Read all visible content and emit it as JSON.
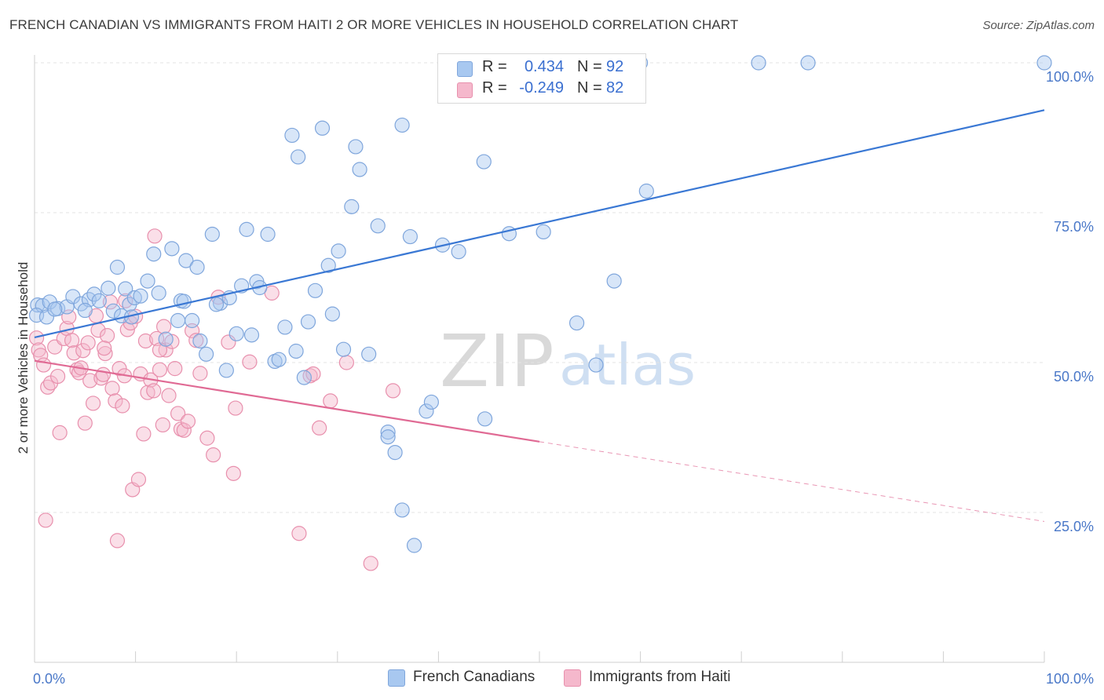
{
  "title": "FRENCH CANADIAN VS IMMIGRANTS FROM HAITI 2 OR MORE VEHICLES IN HOUSEHOLD CORRELATION CHART",
  "source": "Source: ZipAtlas.com",
  "watermark": {
    "zip": "ZIP",
    "atlas": "atlas"
  },
  "legend": {
    "rows": [
      {
        "r_label": "R =",
        "r_value": "0.434",
        "n_label": "N =",
        "n_value": "92",
        "color": "#a8c8f0"
      },
      {
        "r_label": "R =",
        "r_value": "-0.249",
        "n_label": "N =",
        "n_value": "82",
        "color": "#f5b8cc"
      }
    ]
  },
  "bottom_legend": [
    "French Canadians",
    "Immigrants from Haiti"
  ],
  "chart_data": {
    "type": "scatter",
    "ylabel": "2 or more Vehicles in Household",
    "xlim": [
      0,
      100
    ],
    "ylim": [
      0,
      104
    ],
    "x_tick_labels": [
      {
        "value": 0,
        "label": "0.0%"
      },
      {
        "value": 100,
        "label": "100.0%"
      }
    ],
    "y_tick_labels": [
      {
        "value": 25,
        "label": "25.0%"
      },
      {
        "value": 50,
        "label": "50.0%"
      },
      {
        "value": 75,
        "label": "75.0%"
      },
      {
        "value": 100,
        "label": "100.0%"
      }
    ],
    "grid": true,
    "legend_position": "top-center",
    "colors": {
      "blue_fill": "#a8c8f0",
      "blue_stroke": "#7fa6dc",
      "blue_line": "#3a78d4",
      "pink_fill": "#f5b8cc",
      "pink_stroke": "#e890ad",
      "pink_line": "#e06a94"
    },
    "series": [
      {
        "name": "French Canadians",
        "trend": {
          "x0": 0,
          "y0": 54.2,
          "x1": 100,
          "y1": 92.1
        },
        "points": [
          [
            0.3,
            59.6
          ],
          [
            0.8,
            59.5
          ],
          [
            1.5,
            60.1
          ],
          [
            2.3,
            59.0
          ],
          [
            3.2,
            59.3
          ],
          [
            3.8,
            61.0
          ],
          [
            4.6,
            59.8
          ],
          [
            5.4,
            60.5
          ],
          [
            5.9,
            61.4
          ],
          [
            6.4,
            60.3
          ],
          [
            7.3,
            62.4
          ],
          [
            7.8,
            58.6
          ],
          [
            8.2,
            65.9
          ],
          [
            8.6,
            57.8
          ],
          [
            9.0,
            62.3
          ],
          [
            9.4,
            59.7
          ],
          [
            9.9,
            60.8
          ],
          [
            10.5,
            61.1
          ],
          [
            11.2,
            63.6
          ],
          [
            11.8,
            68.1
          ],
          [
            12.3,
            61.6
          ],
          [
            13.0,
            53.9
          ],
          [
            13.6,
            69.0
          ],
          [
            14.2,
            57.0
          ],
          [
            14.5,
            60.3
          ],
          [
            15.0,
            67.0
          ],
          [
            15.6,
            57.0
          ],
          [
            16.1,
            65.9
          ],
          [
            16.4,
            53.6
          ],
          [
            17.0,
            51.4
          ],
          [
            17.6,
            71.4
          ],
          [
            18.4,
            59.9
          ],
          [
            19.0,
            48.7
          ],
          [
            19.3,
            60.8
          ],
          [
            20.0,
            54.8
          ],
          [
            20.5,
            62.8
          ],
          [
            21.0,
            72.2
          ],
          [
            21.5,
            54.6
          ],
          [
            22.0,
            63.5
          ],
          [
            22.3,
            62.5
          ],
          [
            23.1,
            71.4
          ],
          [
            23.8,
            50.2
          ],
          [
            24.2,
            50.5
          ],
          [
            24.8,
            55.9
          ],
          [
            25.5,
            87.9
          ],
          [
            25.9,
            51.9
          ],
          [
            26.1,
            84.3
          ],
          [
            26.7,
            47.5
          ],
          [
            27.1,
            56.8
          ],
          [
            27.8,
            62.0
          ],
          [
            28.5,
            89.1
          ],
          [
            29.1,
            66.2
          ],
          [
            29.5,
            58.1
          ],
          [
            30.1,
            68.6
          ],
          [
            30.6,
            52.2
          ],
          [
            31.4,
            76.0
          ],
          [
            31.8,
            86.0
          ],
          [
            32.2,
            82.2
          ],
          [
            33.1,
            51.4
          ],
          [
            34.0,
            72.8
          ],
          [
            35.0,
            38.4
          ],
          [
            35.0,
            37.6
          ],
          [
            35.7,
            35.0
          ],
          [
            36.4,
            89.6
          ],
          [
            36.4,
            25.4
          ],
          [
            37.2,
            71.0
          ],
          [
            37.6,
            19.5
          ],
          [
            38.8,
            41.9
          ],
          [
            39.3,
            43.4
          ],
          [
            40.4,
            69.6
          ],
          [
            42.0,
            68.5
          ],
          [
            44.5,
            83.5
          ],
          [
            44.6,
            40.6
          ],
          [
            47.0,
            71.5
          ],
          [
            48.0,
            100
          ],
          [
            50.4,
            71.8
          ],
          [
            53.1,
            100
          ],
          [
            53.7,
            56.6
          ],
          [
            55.6,
            49.6
          ],
          [
            57.4,
            63.6
          ],
          [
            60.0,
            100
          ],
          [
            60.6,
            78.6
          ],
          [
            71.7,
            100
          ],
          [
            76.6,
            100
          ],
          [
            100,
            100
          ],
          [
            0.2,
            57.9
          ],
          [
            1.2,
            57.6
          ],
          [
            2.0,
            58.9
          ],
          [
            5.0,
            58.7
          ],
          [
            9.6,
            57.6
          ],
          [
            18.0,
            59.7
          ],
          [
            14.8,
            60.2
          ]
        ]
      },
      {
        "name": "Immigrants from Haiti",
        "trend": {
          "x0": 0,
          "y0": 50.3,
          "x1": 50,
          "y1": 36.8,
          "dashed_to": {
            "x": 100,
            "y": 23.5
          }
        },
        "points": [
          [
            0.2,
            54.1
          ],
          [
            0.4,
            52.1
          ],
          [
            0.6,
            51.2
          ],
          [
            0.9,
            49.6
          ],
          [
            1.1,
            23.7
          ],
          [
            1.3,
            45.9
          ],
          [
            1.6,
            46.6
          ],
          [
            2.0,
            52.6
          ],
          [
            2.3,
            47.7
          ],
          [
            2.5,
            38.3
          ],
          [
            2.9,
            54.0
          ],
          [
            3.2,
            55.7
          ],
          [
            3.4,
            57.6
          ],
          [
            3.7,
            53.7
          ],
          [
            3.9,
            51.6
          ],
          [
            4.2,
            48.8
          ],
          [
            4.4,
            48.3
          ],
          [
            4.8,
            52.0
          ],
          [
            5.0,
            39.9
          ],
          [
            5.3,
            53.3
          ],
          [
            5.5,
            47.0
          ],
          [
            5.8,
            43.2
          ],
          [
            6.1,
            57.8
          ],
          [
            6.3,
            55.4
          ],
          [
            6.6,
            47.4
          ],
          [
            6.8,
            48.0
          ],
          [
            7.0,
            51.5
          ],
          [
            7.2,
            54.5
          ],
          [
            7.5,
            60.1
          ],
          [
            7.7,
            45.7
          ],
          [
            8.0,
            43.6
          ],
          [
            8.2,
            20.3
          ],
          [
            8.4,
            49.0
          ],
          [
            8.7,
            42.8
          ],
          [
            8.9,
            47.8
          ],
          [
            9.2,
            55.5
          ],
          [
            9.5,
            56.6
          ],
          [
            9.7,
            28.8
          ],
          [
            10.0,
            57.7
          ],
          [
            10.3,
            30.5
          ],
          [
            10.5,
            48.1
          ],
          [
            10.8,
            38.1
          ],
          [
            11.0,
            53.6
          ],
          [
            11.2,
            45.0
          ],
          [
            11.5,
            47.1
          ],
          [
            11.8,
            45.3
          ],
          [
            12.1,
            54.0
          ],
          [
            12.4,
            48.8
          ],
          [
            12.7,
            39.6
          ],
          [
            13.0,
            52.1
          ],
          [
            13.3,
            44.5
          ],
          [
            13.6,
            53.5
          ],
          [
            13.9,
            49.0
          ],
          [
            14.2,
            41.5
          ],
          [
            14.5,
            38.9
          ],
          [
            14.8,
            38.7
          ],
          [
            15.2,
            40.2
          ],
          [
            15.6,
            55.3
          ],
          [
            16.0,
            53.7
          ],
          [
            16.4,
            48.2
          ],
          [
            17.1,
            37.4
          ],
          [
            17.7,
            34.6
          ],
          [
            18.2,
            60.9
          ],
          [
            19.2,
            53.4
          ],
          [
            19.7,
            31.5
          ],
          [
            19.9,
            42.4
          ],
          [
            21.3,
            50.1
          ],
          [
            23.5,
            61.6
          ],
          [
            26.2,
            21.5
          ],
          [
            27.3,
            47.8
          ],
          [
            27.6,
            48.1
          ],
          [
            28.2,
            39.1
          ],
          [
            29.3,
            43.6
          ],
          [
            30.9,
            50.0
          ],
          [
            33.3,
            16.5
          ],
          [
            35.5,
            45.3
          ],
          [
            11.9,
            71.1
          ],
          [
            12.8,
            56.0
          ],
          [
            12.4,
            52.1
          ],
          [
            9.0,
            60.3
          ],
          [
            6.9,
            52.4
          ],
          [
            4.6,
            49.1
          ]
        ]
      }
    ]
  }
}
